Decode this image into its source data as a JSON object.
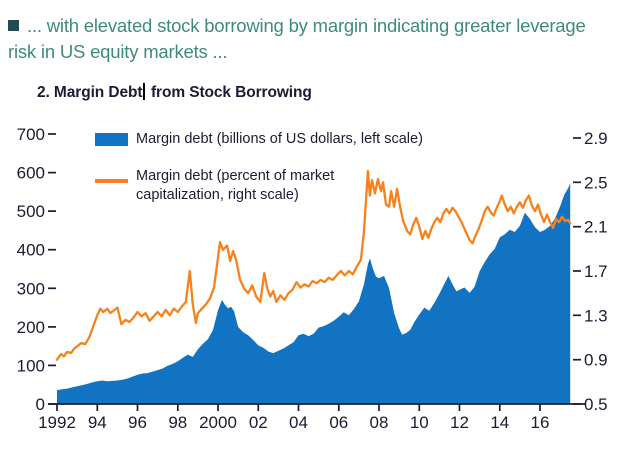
{
  "page": {
    "caption_line1": "... with elevated stock borrowing by margin indicating greater leverage",
    "caption_line2": "risk in US equity markets ...",
    "caption_color": "#3E8B7B",
    "bullet_color": "#234B55",
    "ink_color": "#1B1B33"
  },
  "chart_data": {
    "type": "area+line",
    "title": "2. Margin Debt from Stock Borrowing",
    "title_before_cursor": "2. Margin Debt",
    "title_after_cursor": "from Stock Borrowing",
    "legend": [
      {
        "label": "Margin debt (billions of US dollars, left scale)",
        "type": "area",
        "color": "#1173C2"
      },
      {
        "label": "Margin debt (percent of market capitalization, right scale)",
        "type": "line",
        "color": "#F6821E"
      }
    ],
    "left_axis": {
      "range": [
        0,
        700
      ],
      "ticks": [
        0,
        100,
        200,
        300,
        400,
        500,
        600,
        700
      ]
    },
    "right_axis": {
      "range": [
        0.5,
        2.9
      ],
      "ticks": [
        0.5,
        0.9,
        1.3,
        1.7,
        2.1,
        2.5,
        2.9
      ]
    },
    "x_axis": {
      "tick_years": [
        1992,
        1994,
        1996,
        1998,
        2000,
        2002,
        2004,
        2006,
        2008,
        2010,
        2012,
        2014,
        2016
      ],
      "tick_labels": [
        "1992",
        "94",
        "96",
        "98",
        "2000",
        "02",
        "04",
        "06",
        "08",
        "10",
        "12",
        "14",
        "16"
      ],
      "range": [
        1992,
        2017.6
      ]
    },
    "grid": false,
    "legend_position": "top-left-inside",
    "series": [
      {
        "name": "Margin debt (billions of US dollars)",
        "axis": "left",
        "style": "area",
        "points": [
          [
            1992.0,
            36
          ],
          [
            1992.25,
            38
          ],
          [
            1992.5,
            40
          ],
          [
            1992.75,
            43
          ],
          [
            1993.0,
            46
          ],
          [
            1993.25,
            49
          ],
          [
            1993.5,
            52
          ],
          [
            1993.75,
            56
          ],
          [
            1994.0,
            59
          ],
          [
            1994.25,
            61
          ],
          [
            1994.5,
            59
          ],
          [
            1994.75,
            60
          ],
          [
            1995.0,
            61
          ],
          [
            1995.25,
            63
          ],
          [
            1995.5,
            66
          ],
          [
            1995.75,
            71
          ],
          [
            1996.0,
            76
          ],
          [
            1996.25,
            79
          ],
          [
            1996.5,
            80
          ],
          [
            1996.75,
            84
          ],
          [
            1997.0,
            88
          ],
          [
            1997.25,
            92
          ],
          [
            1997.5,
            99
          ],
          [
            1997.75,
            104
          ],
          [
            1998.0,
            111
          ],
          [
            1998.25,
            120
          ],
          [
            1998.5,
            128
          ],
          [
            1998.75,
            122
          ],
          [
            1999.0,
            142
          ],
          [
            1999.25,
            156
          ],
          [
            1999.5,
            168
          ],
          [
            1999.75,
            192
          ],
          [
            2000.0,
            243
          ],
          [
            2000.2,
            270
          ],
          [
            2000.35,
            257
          ],
          [
            2000.5,
            248
          ],
          [
            2000.65,
            252
          ],
          [
            2000.8,
            240
          ],
          [
            2001.0,
            200
          ],
          [
            2001.25,
            186
          ],
          [
            2001.5,
            178
          ],
          [
            2001.75,
            166
          ],
          [
            2002.0,
            152
          ],
          [
            2002.25,
            146
          ],
          [
            2002.5,
            136
          ],
          [
            2002.75,
            132
          ],
          [
            2003.0,
            138
          ],
          [
            2003.25,
            144
          ],
          [
            2003.5,
            152
          ],
          [
            2003.75,
            160
          ],
          [
            2004.0,
            178
          ],
          [
            2004.25,
            182
          ],
          [
            2004.5,
            176
          ],
          [
            2004.75,
            182
          ],
          [
            2005.0,
            198
          ],
          [
            2005.25,
            202
          ],
          [
            2005.5,
            208
          ],
          [
            2005.75,
            216
          ],
          [
            2006.0,
            226
          ],
          [
            2006.25,
            238
          ],
          [
            2006.5,
            230
          ],
          [
            2006.75,
            246
          ],
          [
            2007.0,
            266
          ],
          [
            2007.25,
            310
          ],
          [
            2007.45,
            362
          ],
          [
            2007.55,
            378
          ],
          [
            2007.7,
            350
          ],
          [
            2007.85,
            330
          ],
          [
            2008.0,
            326
          ],
          [
            2008.25,
            332
          ],
          [
            2008.5,
            300
          ],
          [
            2008.75,
            236
          ],
          [
            2009.0,
            196
          ],
          [
            2009.15,
            180
          ],
          [
            2009.35,
            184
          ],
          [
            2009.55,
            192
          ],
          [
            2009.75,
            212
          ],
          [
            2010.0,
            232
          ],
          [
            2010.25,
            250
          ],
          [
            2010.5,
            242
          ],
          [
            2010.75,
            262
          ],
          [
            2011.0,
            286
          ],
          [
            2011.25,
            312
          ],
          [
            2011.45,
            332
          ],
          [
            2011.65,
            310
          ],
          [
            2011.85,
            292
          ],
          [
            2012.0,
            296
          ],
          [
            2012.25,
            302
          ],
          [
            2012.5,
            288
          ],
          [
            2012.75,
            304
          ],
          [
            2013.0,
            344
          ],
          [
            2013.25,
            368
          ],
          [
            2013.5,
            388
          ],
          [
            2013.75,
            402
          ],
          [
            2014.0,
            432
          ],
          [
            2014.25,
            440
          ],
          [
            2014.5,
            452
          ],
          [
            2014.75,
            446
          ],
          [
            2015.0,
            462
          ],
          [
            2015.25,
            496
          ],
          [
            2015.5,
            480
          ],
          [
            2015.75,
            458
          ],
          [
            2016.0,
            446
          ],
          [
            2016.25,
            452
          ],
          [
            2016.5,
            462
          ],
          [
            2016.75,
            482
          ],
          [
            2017.0,
            512
          ],
          [
            2017.2,
            542
          ],
          [
            2017.4,
            560
          ],
          [
            2017.5,
            572
          ]
        ]
      },
      {
        "name": "Margin debt (percent of market capitalization)",
        "axis": "right",
        "style": "line",
        "points": [
          [
            1992.0,
            0.9
          ],
          [
            1992.2,
            0.95
          ],
          [
            1992.35,
            0.93
          ],
          [
            1992.5,
            0.97
          ],
          [
            1992.7,
            0.96
          ],
          [
            1992.85,
            1.0
          ],
          [
            1993.0,
            1.02
          ],
          [
            1993.2,
            1.05
          ],
          [
            1993.4,
            1.04
          ],
          [
            1993.6,
            1.1
          ],
          [
            1993.8,
            1.2
          ],
          [
            1994.0,
            1.3
          ],
          [
            1994.15,
            1.36
          ],
          [
            1994.3,
            1.33
          ],
          [
            1994.5,
            1.36
          ],
          [
            1994.65,
            1.32
          ],
          [
            1994.8,
            1.34
          ],
          [
            1995.0,
            1.37
          ],
          [
            1995.2,
            1.22
          ],
          [
            1995.4,
            1.26
          ],
          [
            1995.6,
            1.24
          ],
          [
            1995.8,
            1.28
          ],
          [
            1996.0,
            1.33
          ],
          [
            1996.2,
            1.29
          ],
          [
            1996.4,
            1.32
          ],
          [
            1996.6,
            1.25
          ],
          [
            1996.8,
            1.29
          ],
          [
            1997.0,
            1.33
          ],
          [
            1997.2,
            1.29
          ],
          [
            1997.4,
            1.35
          ],
          [
            1997.6,
            1.3
          ],
          [
            1997.8,
            1.36
          ],
          [
            1998.0,
            1.33
          ],
          [
            1998.2,
            1.38
          ],
          [
            1998.4,
            1.42
          ],
          [
            1998.6,
            1.7
          ],
          [
            1998.75,
            1.4
          ],
          [
            1998.9,
            1.23
          ],
          [
            1999.0,
            1.32
          ],
          [
            1999.2,
            1.36
          ],
          [
            1999.4,
            1.4
          ],
          [
            1999.6,
            1.45
          ],
          [
            1999.8,
            1.55
          ],
          [
            2000.1,
            1.96
          ],
          [
            2000.25,
            1.89
          ],
          [
            2000.45,
            1.93
          ],
          [
            2000.6,
            1.79
          ],
          [
            2000.75,
            1.88
          ],
          [
            2000.9,
            1.8
          ],
          [
            2001.1,
            1.62
          ],
          [
            2001.3,
            1.54
          ],
          [
            2001.5,
            1.5
          ],
          [
            2001.7,
            1.57
          ],
          [
            2001.9,
            1.47
          ],
          [
            2002.1,
            1.42
          ],
          [
            2002.3,
            1.68
          ],
          [
            2002.45,
            1.54
          ],
          [
            2002.6,
            1.47
          ],
          [
            2002.75,
            1.52
          ],
          [
            2002.9,
            1.42
          ],
          [
            2003.1,
            1.48
          ],
          [
            2003.3,
            1.44
          ],
          [
            2003.5,
            1.5
          ],
          [
            2003.7,
            1.53
          ],
          [
            2003.9,
            1.6
          ],
          [
            2004.1,
            1.55
          ],
          [
            2004.3,
            1.58
          ],
          [
            2004.5,
            1.56
          ],
          [
            2004.7,
            1.61
          ],
          [
            2004.9,
            1.59
          ],
          [
            2005.1,
            1.62
          ],
          [
            2005.3,
            1.6
          ],
          [
            2005.5,
            1.64
          ],
          [
            2005.7,
            1.62
          ],
          [
            2005.9,
            1.66
          ],
          [
            2006.1,
            1.7
          ],
          [
            2006.3,
            1.66
          ],
          [
            2006.5,
            1.7
          ],
          [
            2006.7,
            1.67
          ],
          [
            2006.9,
            1.74
          ],
          [
            2007.1,
            1.8
          ],
          [
            2007.25,
            2.05
          ],
          [
            2007.45,
            2.6
          ],
          [
            2007.55,
            2.38
          ],
          [
            2007.65,
            2.52
          ],
          [
            2007.8,
            2.4
          ],
          [
            2007.95,
            2.53
          ],
          [
            2008.1,
            2.42
          ],
          [
            2008.2,
            2.5
          ],
          [
            2008.35,
            2.3
          ],
          [
            2008.5,
            2.28
          ],
          [
            2008.6,
            2.42
          ],
          [
            2008.75,
            2.28
          ],
          [
            2008.9,
            2.44
          ],
          [
            2009.05,
            2.28
          ],
          [
            2009.2,
            2.15
          ],
          [
            2009.4,
            2.06
          ],
          [
            2009.55,
            2.03
          ],
          [
            2009.7,
            2.12
          ],
          [
            2009.85,
            2.18
          ],
          [
            2010.0,
            2.1
          ],
          [
            2010.15,
            1.99
          ],
          [
            2010.3,
            2.06
          ],
          [
            2010.45,
            2.0
          ],
          [
            2010.6,
            2.08
          ],
          [
            2010.75,
            2.14
          ],
          [
            2010.9,
            2.18
          ],
          [
            2011.05,
            2.14
          ],
          [
            2011.2,
            2.22
          ],
          [
            2011.35,
            2.26
          ],
          [
            2011.5,
            2.22
          ],
          [
            2011.65,
            2.27
          ],
          [
            2011.8,
            2.24
          ],
          [
            2011.95,
            2.19
          ],
          [
            2012.1,
            2.14
          ],
          [
            2012.3,
            2.06
          ],
          [
            2012.5,
            1.98
          ],
          [
            2012.65,
            1.95
          ],
          [
            2012.8,
            2.02
          ],
          [
            2012.95,
            2.08
          ],
          [
            2013.1,
            2.15
          ],
          [
            2013.25,
            2.24
          ],
          [
            2013.4,
            2.28
          ],
          [
            2013.55,
            2.23
          ],
          [
            2013.7,
            2.2
          ],
          [
            2013.85,
            2.27
          ],
          [
            2014.0,
            2.33
          ],
          [
            2014.1,
            2.38
          ],
          [
            2014.25,
            2.3
          ],
          [
            2014.4,
            2.24
          ],
          [
            2014.55,
            2.28
          ],
          [
            2014.7,
            2.22
          ],
          [
            2014.85,
            2.28
          ],
          [
            2015.0,
            2.32
          ],
          [
            2015.15,
            2.27
          ],
          [
            2015.3,
            2.34
          ],
          [
            2015.45,
            2.38
          ],
          [
            2015.6,
            2.29
          ],
          [
            2015.75,
            2.24
          ],
          [
            2015.9,
            2.3
          ],
          [
            2016.05,
            2.21
          ],
          [
            2016.2,
            2.14
          ],
          [
            2016.35,
            2.21
          ],
          [
            2016.5,
            2.14
          ],
          [
            2016.65,
            2.09
          ],
          [
            2016.8,
            2.17
          ],
          [
            2016.95,
            2.14
          ],
          [
            2017.1,
            2.19
          ],
          [
            2017.25,
            2.15
          ],
          [
            2017.4,
            2.16
          ],
          [
            2017.5,
            2.13
          ]
        ]
      }
    ]
  }
}
